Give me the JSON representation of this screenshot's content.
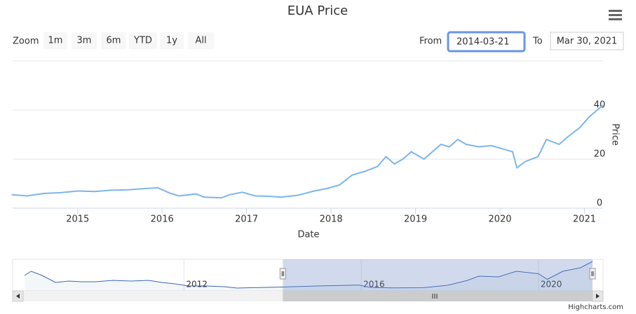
{
  "range_selector": {
    "zoom_label": "Zoom",
    "buttons": [
      "1m",
      "3m",
      "6m",
      "YTD",
      "1y",
      "All"
    ],
    "from_label": "From",
    "from_value": "2014-03-21",
    "to_label": "To",
    "to_value": "Mar 30, 2021"
  },
  "credits": "Highcharts.com",
  "chart_data": [
    {
      "type": "line",
      "title": "EUA Price",
      "x_label": "Date",
      "y_label": "Price",
      "color": "#7cb5ec",
      "x": [
        2014.22,
        2014.4,
        2014.6,
        2014.8,
        2015.0,
        2015.2,
        2015.4,
        2015.6,
        2015.8,
        2015.95,
        2016.1,
        2016.2,
        2016.4,
        2016.5,
        2016.7,
        2016.8,
        2016.95,
        2017.1,
        2017.3,
        2017.4,
        2017.6,
        2017.8,
        2017.95,
        2018.1,
        2018.25,
        2018.4,
        2018.55,
        2018.65,
        2018.75,
        2018.85,
        2018.95,
        2019.1,
        2019.2,
        2019.3,
        2019.4,
        2019.5,
        2019.6,
        2019.75,
        2019.9,
        2020.0,
        2020.15,
        2020.2,
        2020.3,
        2020.45,
        2020.55,
        2020.7,
        2020.8,
        2020.95,
        2021.05,
        2021.15,
        2021.22
      ],
      "values": [
        5.5,
        5.0,
        6.0,
        6.3,
        7.0,
        6.8,
        7.3,
        7.5,
        8.0,
        8.3,
        6.0,
        5.0,
        5.8,
        4.5,
        4.2,
        5.5,
        6.5,
        5.0,
        4.8,
        4.5,
        5.2,
        7.0,
        8.0,
        9.5,
        13.5,
        15.0,
        17.0,
        21.0,
        18.0,
        20.0,
        23.0,
        20.0,
        23.0,
        26.0,
        25.0,
        28.0,
        26.0,
        25.0,
        25.5,
        24.5,
        23.0,
        16.5,
        19.0,
        21.0,
        28.0,
        26.0,
        29.0,
        33.0,
        37.0,
        40.0,
        42.0
      ],
      "xlim": [
        2014.23,
        2021.22
      ],
      "xticks": [
        2015,
        2016,
        2017,
        2018,
        2019,
        2020,
        2021
      ],
      "ylim": [
        0,
        60
      ],
      "yticks": [
        0,
        20,
        40
      ],
      "grid": true
    },
    {
      "type": "navigator",
      "color": "#3d66b5",
      "x": [
        2008.4,
        2008.55,
        2008.8,
        2009.1,
        2009.4,
        2009.7,
        2010.0,
        2010.4,
        2010.8,
        2011.2,
        2011.5,
        2011.8,
        2012.1,
        2012.5,
        2012.9,
        2013.2,
        2013.5,
        2013.9,
        2014.22,
        2015.0,
        2015.95,
        2016.2,
        2016.7,
        2017.4,
        2017.95,
        2018.4,
        2018.65,
        2019.1,
        2019.5,
        2020.0,
        2020.2,
        2020.55,
        2020.95,
        2021.22
      ],
      "values": [
        22,
        28,
        22,
        12,
        14,
        13,
        13,
        15,
        14,
        15,
        12,
        10,
        7,
        7,
        6,
        4,
        4.5,
        5,
        5.5,
        7,
        8.3,
        5,
        4.2,
        4.5,
        8,
        15,
        21,
        20,
        28,
        24.5,
        16.5,
        28,
        33,
        42
      ],
      "xlim": [
        2008.37,
        2021.22
      ],
      "xticks": [
        2012,
        2016,
        2020
      ],
      "ylim": [
        0,
        45
      ],
      "selection": [
        2014.23,
        2021.22
      ]
    }
  ]
}
